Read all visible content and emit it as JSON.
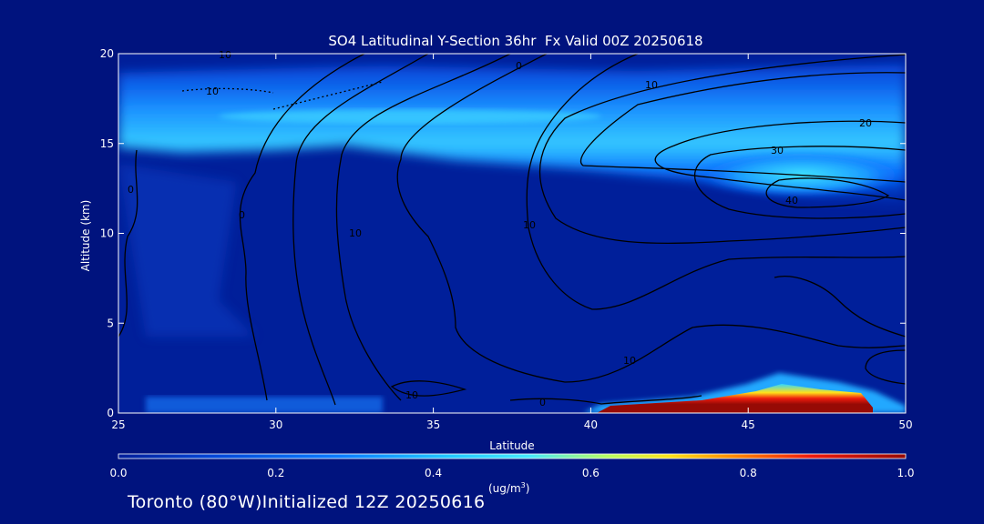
{
  "colors": {
    "background": "#00137e",
    "axis": "#ffffff",
    "contour": "#000000",
    "colormap": [
      "#001f9a",
      "#0046d8",
      "#0a7cff",
      "#21c8ff",
      "#44e8ff",
      "#b6ff63",
      "#ffe21a",
      "#ff8b00",
      "#ee1b0e",
      "#960a05"
    ]
  },
  "chart_data": {
    "type": "heatmap",
    "title": "SO4 Latitudinal Y-Section 36hr  Fx Valid 00Z 20250618",
    "xlabel": "Latitude",
    "ylabel": "Altitude (km)",
    "xlim": [
      25,
      50
    ],
    "ylim": [
      0,
      20
    ],
    "xticks": [
      "25",
      "30",
      "35",
      "40",
      "45",
      "50"
    ],
    "yticks": [
      "0",
      "5",
      "10",
      "15",
      "20"
    ],
    "colorbar": {
      "label": "(ug/m",
      "label_superscript": "3",
      "label_close": ")",
      "range": [
        0.0,
        1.0
      ],
      "ticks": [
        "0.0",
        "0.2",
        "0.4",
        "0.6",
        "0.8",
        "1.0"
      ]
    },
    "fill_regions": [
      {
        "feature": "upper-layer",
        "altitude_km": [
          15,
          17.5
        ],
        "value": 0.35
      },
      {
        "feature": "upper-layer-max",
        "lat": [
          44,
          48
        ],
        "altitude_km": [
          12.5,
          14
        ],
        "value": 0.45
      },
      {
        "feature": "surface-plume",
        "lat": [
          41,
          49
        ],
        "altitude_km": [
          0,
          1.8
        ],
        "value": 1.0
      },
      {
        "feature": "surface-layer",
        "lat": [
          27,
          35
        ],
        "altitude_km": [
          0,
          1
        ],
        "value": 0.2
      }
    ],
    "contour_labels": [
      "10",
      "10",
      "0",
      "10",
      "20",
      "30",
      "40",
      "0",
      "10",
      "10",
      "10",
      "0",
      "0",
      "10"
    ],
    "footer": "Toronto (80°W)Initialized 12Z 20250616"
  }
}
